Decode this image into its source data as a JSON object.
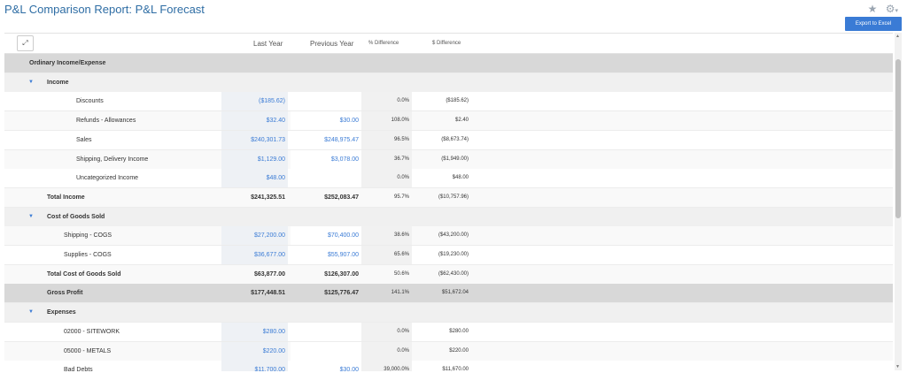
{
  "page": {
    "title": "P&L Comparison Report: P&L Forecast",
    "export_label": "Export to Excel",
    "star_icon": "★",
    "gear_icon": "⚙",
    "gear_caret": "▾"
  },
  "table": {
    "expand_icon": "⤢",
    "headers": {
      "last_year": "Last Year",
      "previous_year": "Previous Year",
      "pct_diff": "% Difference",
      "dollar_diff": "$ Difference"
    },
    "caret": "▼",
    "rows": [
      {
        "label": "Ordinary Income/Expense",
        "type": "sec",
        "indent": 28,
        "bold": true,
        "ly": "",
        "py": "",
        "pd": "",
        "dd": ""
      },
      {
        "label": "Income",
        "type": "grp",
        "indent": 48,
        "bold": true,
        "caret": true,
        "ly": "",
        "py": "",
        "pd": "",
        "dd": ""
      },
      {
        "label": "Discounts",
        "type": "plain",
        "indent": 81,
        "ly": "($185.62)",
        "py": "",
        "pd": "0.0%",
        "dd": "($185.62)",
        "link": true
      },
      {
        "label": "Refunds - Allowances",
        "type": "alt",
        "indent": 81,
        "ly": "$32.40",
        "py": "$30.00",
        "pd": "108.0%",
        "dd": "$2.40",
        "link": true
      },
      {
        "label": "Sales",
        "type": "plain",
        "indent": 81,
        "ly": "$240,301.73",
        "py": "$248,975.47",
        "pd": "96.5%",
        "dd": "($8,673.74)",
        "link": true
      },
      {
        "label": "Shipping, Delivery Income",
        "type": "alt",
        "indent": 81,
        "ly": "$1,129.00",
        "py": "$3,078.00",
        "pd": "36.7%",
        "dd": "($1,949.00)",
        "link": true
      },
      {
        "label": "Uncategorized Income",
        "type": "plain",
        "indent": 81,
        "ly": "$48.00",
        "py": "",
        "pd": "0.0%",
        "dd": "$48.00",
        "link": true
      },
      {
        "label": "Total Income",
        "type": "alt",
        "indent": 48,
        "bold": true,
        "ly": "$241,325.51",
        "py": "$252,083.47",
        "pd": "95.7%",
        "dd": "($10,757.96)",
        "link": false
      },
      {
        "label": "Cost of Goods Sold",
        "type": "grp",
        "indent": 48,
        "bold": true,
        "caret": true,
        "ly": "",
        "py": "",
        "pd": "",
        "dd": ""
      },
      {
        "label": "Shipping - COGS",
        "type": "alt",
        "indent": 67,
        "ly": "$27,200.00",
        "py": "$70,400.00",
        "pd": "38.6%",
        "dd": "($43,200.00)",
        "link": true
      },
      {
        "label": "Supplies - COGS",
        "type": "plain",
        "indent": 67,
        "ly": "$36,677.00",
        "py": "$55,907.00",
        "pd": "65.6%",
        "dd": "($19,230.00)",
        "link": true
      },
      {
        "label": "Total Cost of Goods Sold",
        "type": "alt",
        "indent": 48,
        "bold": true,
        "ly": "$63,877.00",
        "py": "$126,307.00",
        "pd": "50.6%",
        "dd": "($62,430.00)",
        "link": false
      },
      {
        "label": "Gross Profit",
        "type": "sec",
        "indent": 48,
        "bold": true,
        "ly": "$177,448.51",
        "py": "$125,776.47",
        "pd": "141.1%",
        "dd": "$51,672.04",
        "link": false
      },
      {
        "label": "Expenses",
        "type": "grp",
        "indent": 48,
        "bold": true,
        "caret": true,
        "ly": "",
        "py": "",
        "pd": "",
        "dd": ""
      },
      {
        "label": "02000 - SITEWORK",
        "type": "plain",
        "indent": 67,
        "ly": "$280.00",
        "py": "",
        "pd": "0.0%",
        "dd": "$280.00",
        "link": true
      },
      {
        "label": "05000 - METALS",
        "type": "alt",
        "indent": 67,
        "ly": "$220.00",
        "py": "",
        "pd": "0.0%",
        "dd": "$220.00",
        "link": true
      },
      {
        "label": "Bad Debts",
        "type": "plain",
        "indent": 67,
        "ly": "$11,700.00",
        "py": "$30.00",
        "pd": "39,000.0%",
        "dd": "$11,670.00",
        "link": true
      }
    ]
  },
  "scrollbar": {
    "up": "▲",
    "down": "▼"
  }
}
